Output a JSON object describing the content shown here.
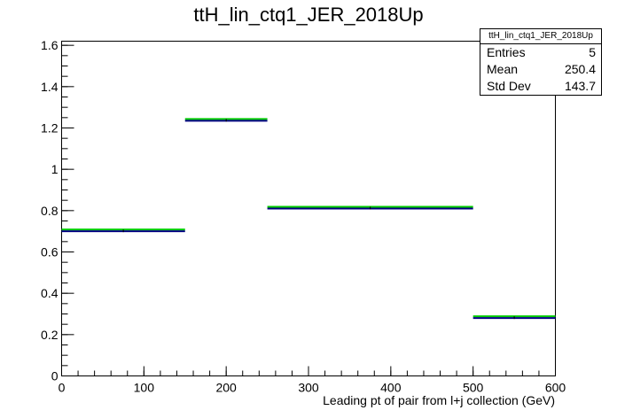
{
  "chart_data": {
    "type": "histogram",
    "title": "ttH_lin_ctq1_JER_2018Up",
    "xlabel": "Leading pt of pair from l+j collection (GeV)",
    "ylabel": "",
    "xlim": [
      0,
      600
    ],
    "ylim": [
      0,
      1.62
    ],
    "x_ticks": [
      "0",
      "100",
      "200",
      "300",
      "400",
      "500",
      "600"
    ],
    "y_ticks": [
      "0",
      "0.2",
      "0.4",
      "0.6",
      "0.8",
      "1",
      "1.2",
      "1.4",
      "1.6"
    ],
    "bins": [
      {
        "low": 0,
        "high": 150,
        "value": 0.7
      },
      {
        "low": 150,
        "high": 250,
        "value": 1.235
      },
      {
        "low": 250,
        "high": 500,
        "value": 0.81
      },
      {
        "low": 500,
        "high": 600,
        "value": 0.28
      }
    ],
    "series_colors": {
      "primary": "#00007f",
      "secondary": "#00cc00"
    },
    "stats": {
      "name": "ttH_lin_ctq1_JER_2018Up",
      "entries_label": "Entries",
      "entries": "5",
      "mean_label": "Mean",
      "mean": "250.4",
      "stddev_label": "Std Dev",
      "stddev": "143.7"
    }
  }
}
